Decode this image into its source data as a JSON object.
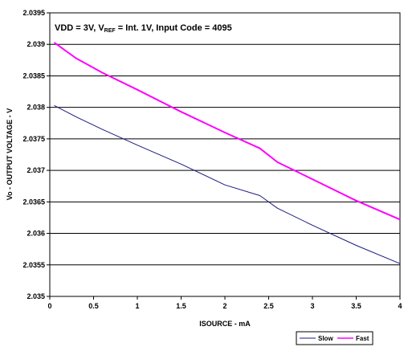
{
  "chart_data": {
    "type": "line",
    "title": "",
    "annotation": {
      "prefix": "VDD = 3V, V",
      "subscript": "REF",
      "suffix": " = Int. 1V, Input Code = 4095"
    },
    "xlabel": "ISOURCE - mA",
    "ylabel": "Vo - OUTPUT VOLTAGE - V",
    "xlim": [
      0,
      4
    ],
    "ylim": [
      2.035,
      2.0395
    ],
    "x_ticks": [
      0,
      0.5,
      1,
      1.5,
      2,
      2.5,
      3,
      3.5,
      4
    ],
    "x_tick_labels": [
      "0",
      "0.5",
      "1",
      "1.5",
      "2",
      "2.5",
      "3",
      "3.5",
      "4"
    ],
    "y_ticks": [
      2.035,
      2.0355,
      2.036,
      2.0365,
      2.037,
      2.0375,
      2.038,
      2.0385,
      2.039,
      2.0395
    ],
    "y_tick_labels": [
      "2.035",
      "2.0355",
      "2.036",
      "2.0365",
      "2.037",
      "2.0375",
      "2.038",
      "2.0385",
      "2.039",
      "2.0395"
    ],
    "grid": "horizontal",
    "legend_position": "bottom-right",
    "series": [
      {
        "name": "Slow",
        "color": "#1a1a80",
        "x": [
          0.05,
          0.3,
          0.6,
          1.0,
          1.5,
          2.0,
          2.4,
          2.6,
          3.0,
          3.5,
          4.0
        ],
        "y": [
          2.03803,
          2.03785,
          2.03765,
          2.0374,
          2.0371,
          2.03677,
          2.0366,
          2.0364,
          2.03613,
          2.03581,
          2.03552
        ]
      },
      {
        "name": "Fast",
        "color": "#ff00ff",
        "x": [
          0.05,
          0.3,
          0.6,
          1.0,
          1.5,
          2.0,
          2.4,
          2.6,
          3.0,
          3.5,
          4.0
        ],
        "y": [
          2.03903,
          2.03878,
          2.03855,
          2.03828,
          2.03793,
          2.0376,
          2.03735,
          2.03713,
          2.03686,
          2.03652,
          2.03622
        ]
      }
    ]
  }
}
